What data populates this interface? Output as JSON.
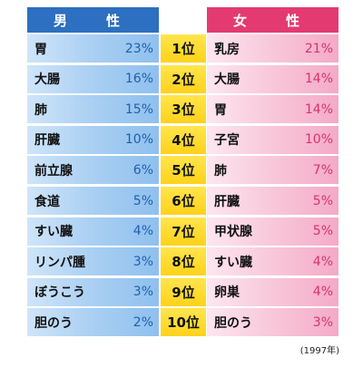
{
  "chart_data": {
    "type": "table",
    "headers": {
      "male": "男　性",
      "female": "女　性"
    },
    "ranks": [
      "1位",
      "2位",
      "3位",
      "4位",
      "5位",
      "6位",
      "7位",
      "8位",
      "9位",
      "10位"
    ],
    "male": [
      {
        "site": "胃",
        "pct": "23%"
      },
      {
        "site": "大腸",
        "pct": "16%"
      },
      {
        "site": "肺",
        "pct": "15%"
      },
      {
        "site": "肝臓",
        "pct": "10%"
      },
      {
        "site": "前立腺",
        "pct": "6%"
      },
      {
        "site": "食道",
        "pct": "5%"
      },
      {
        "site": "すい臓",
        "pct": "4%"
      },
      {
        "site": "リンパ腫",
        "pct": "3%"
      },
      {
        "site": "ぼうこう",
        "pct": "3%"
      },
      {
        "site": "胆のう",
        "pct": "2%"
      }
    ],
    "female": [
      {
        "site": "乳房",
        "pct": "21%"
      },
      {
        "site": "大腸",
        "pct": "14%"
      },
      {
        "site": "胃",
        "pct": "14%"
      },
      {
        "site": "子宮",
        "pct": "10%"
      },
      {
        "site": "肺",
        "pct": "7%"
      },
      {
        "site": "肝臓",
        "pct": "5%"
      },
      {
        "site": "甲状腺",
        "pct": "5%"
      },
      {
        "site": "すい臓",
        "pct": "4%"
      },
      {
        "site": "卵巣",
        "pct": "4%"
      },
      {
        "site": "胆のう",
        "pct": "3%"
      }
    ],
    "note": "(1997年)",
    "colors": {
      "male_header": "#2d6fc0",
      "female_header": "#e43a72",
      "rank": "#ffd93a"
    }
  }
}
